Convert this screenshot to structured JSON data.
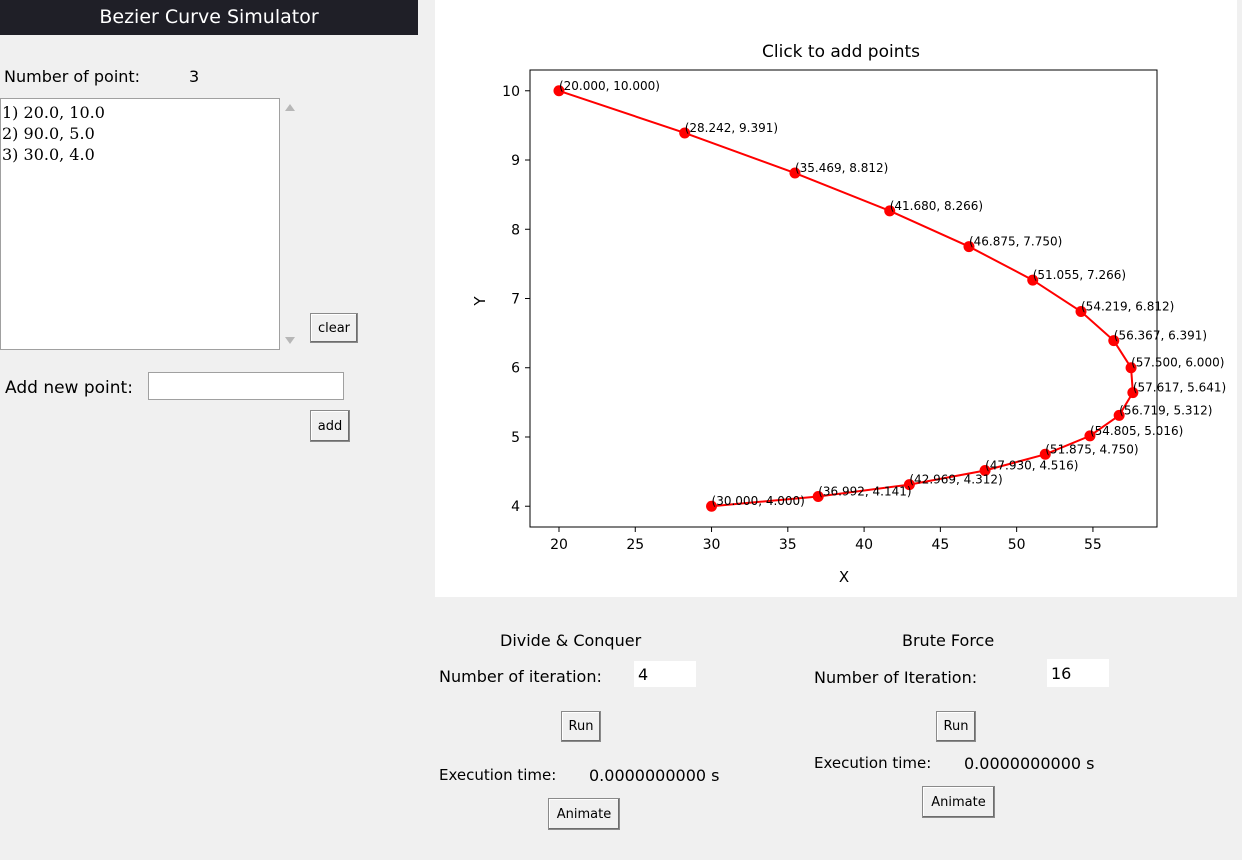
{
  "app": {
    "title": "Bezier Curve Simulator"
  },
  "points_panel": {
    "count_label": "Number of point:",
    "count_value": "3",
    "items": [
      "1) 20.0, 10.0",
      "2) 90.0, 5.0",
      "3) 30.0, 4.0"
    ],
    "clear_label": "clear",
    "add_label": "Add new point:",
    "add_input_value": "",
    "add_button": "add"
  },
  "divide_conquer": {
    "title": "Divide & Conquer",
    "iter_label": "Number of iteration:",
    "iter_value": "4",
    "run_label": "Run",
    "exec_label": "Execution time:",
    "exec_value": "0.0000000000 s",
    "animate_label": "Animate"
  },
  "brute_force": {
    "title": "Brute Force",
    "iter_label": "Number of Iteration:",
    "iter_value": "16",
    "run_label": "Run",
    "exec_label": "Execution time:",
    "exec_value": "0.0000000000 s",
    "animate_label": "Animate"
  },
  "chart_data": {
    "type": "line",
    "title": "Click to add points",
    "xlabel": "X",
    "ylabel": "Y",
    "xlim": [
      18.1,
      59.2
    ],
    "ylim": [
      3.7,
      10.3
    ],
    "xticks": [
      20,
      25,
      30,
      35,
      40,
      45,
      50,
      55
    ],
    "yticks": [
      4,
      5,
      6,
      7,
      8,
      9,
      10
    ],
    "color": "#ff0000",
    "points": [
      {
        "x": 20.0,
        "y": 10.0,
        "label": "(20.000, 10.000)"
      },
      {
        "x": 28.242,
        "y": 9.391,
        "label": "(28.242, 9.391)"
      },
      {
        "x": 35.469,
        "y": 8.812,
        "label": "(35.469, 8.812)"
      },
      {
        "x": 41.68,
        "y": 8.266,
        "label": "(41.680, 8.266)"
      },
      {
        "x": 46.875,
        "y": 7.75,
        "label": "(46.875, 7.750)"
      },
      {
        "x": 51.055,
        "y": 7.266,
        "label": "(51.055, 7.266)"
      },
      {
        "x": 54.219,
        "y": 6.812,
        "label": "(54.219, 6.812)"
      },
      {
        "x": 56.367,
        "y": 6.391,
        "label": "(56.367, 6.391)"
      },
      {
        "x": 57.5,
        "y": 6.0,
        "label": "(57.500, 6.000)"
      },
      {
        "x": 57.617,
        "y": 5.641,
        "label": "(57.617, 5.641)"
      },
      {
        "x": 56.719,
        "y": 5.312,
        "label": "(56.719, 5.312)"
      },
      {
        "x": 54.805,
        "y": 5.016,
        "label": "(54.805, 5.016)"
      },
      {
        "x": 51.875,
        "y": 4.75,
        "label": "(51.875, 4.750)"
      },
      {
        "x": 47.93,
        "y": 4.516,
        "label": "(47.930, 4.516)"
      },
      {
        "x": 42.969,
        "y": 4.312,
        "label": "(42.969, 4.312)"
      },
      {
        "x": 36.992,
        "y": 4.141,
        "label": "(36.992, 4.141)"
      },
      {
        "x": 30.0,
        "y": 4.0,
        "label": "(30.000, 4.000)"
      }
    ]
  }
}
